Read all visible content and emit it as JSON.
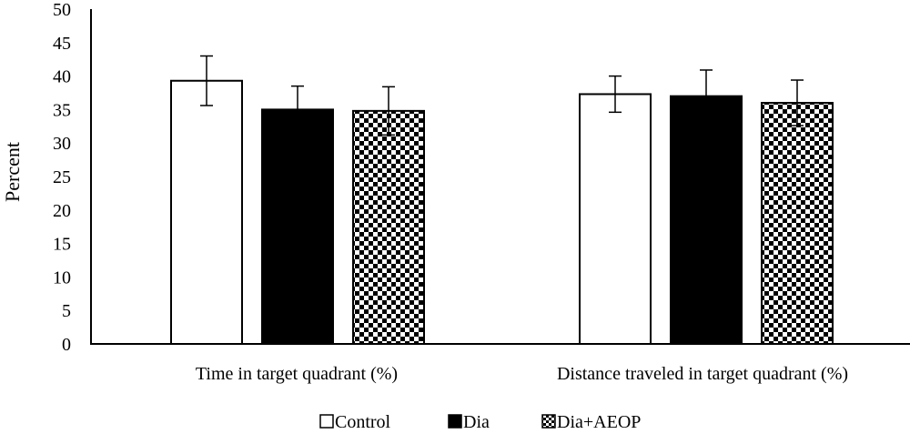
{
  "chart_data": {
    "type": "bar",
    "title": "",
    "xlabel": "",
    "ylabel": "Percent",
    "ylim": [
      0,
      50
    ],
    "yticks": [
      "0",
      "5",
      "10",
      "15",
      "20",
      "25",
      "30",
      "35",
      "40",
      "45",
      "50"
    ],
    "grid": false,
    "legend_position": "bottom",
    "categories": [
      "Time in target quadrant (%)",
      "Distance traveled in target quadrant (%)"
    ],
    "series": [
      {
        "name": "Control",
        "fill": "white",
        "values": [
          39.3,
          37.3
        ],
        "errors": [
          3.7,
          2.7
        ]
      },
      {
        "name": "Dia",
        "fill": "black",
        "values": [
          35.0,
          37.0
        ],
        "errors": [
          3.5,
          3.9
        ]
      },
      {
        "name": "Dia+AEOP",
        "fill": "checker",
        "values": [
          34.8,
          36.0
        ],
        "errors": [
          3.6,
          3.4
        ]
      }
    ]
  }
}
